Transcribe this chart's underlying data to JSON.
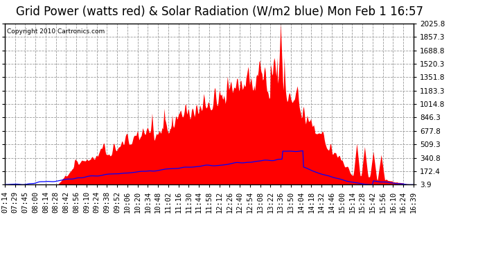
{
  "title": "Grid Power (watts red) & Solar Radiation (W/m2 blue) Mon Feb 1 16:57",
  "copyright": "Copyright 2010 Cartronics.com",
  "background_color": "#ffffff",
  "plot_bg_color": "#ffffff",
  "grid_color": "#999999",
  "y_ticks": [
    3.9,
    172.4,
    340.8,
    509.3,
    677.8,
    846.3,
    1014.8,
    1183.3,
    1351.8,
    1520.3,
    1688.8,
    1857.3,
    2025.8
  ],
  "y_min": 3.9,
  "y_max": 2025.8,
  "x_labels": [
    "07:14",
    "07:29",
    "07:45",
    "08:00",
    "08:14",
    "08:28",
    "08:42",
    "08:56",
    "09:10",
    "09:24",
    "09:38",
    "09:52",
    "10:06",
    "10:20",
    "10:34",
    "10:48",
    "11:02",
    "11:16",
    "11:30",
    "11:44",
    "11:58",
    "12:12",
    "12:26",
    "12:40",
    "12:54",
    "13:08",
    "13:22",
    "13:36",
    "13:50",
    "14:04",
    "14:18",
    "14:32",
    "14:46",
    "15:00",
    "15:14",
    "15:28",
    "15:42",
    "15:56",
    "16:10",
    "16:24",
    "16:39"
  ],
  "red_color": "#ff0000",
  "blue_color": "#0000ff",
  "title_fontsize": 12,
  "tick_fontsize": 7.5
}
